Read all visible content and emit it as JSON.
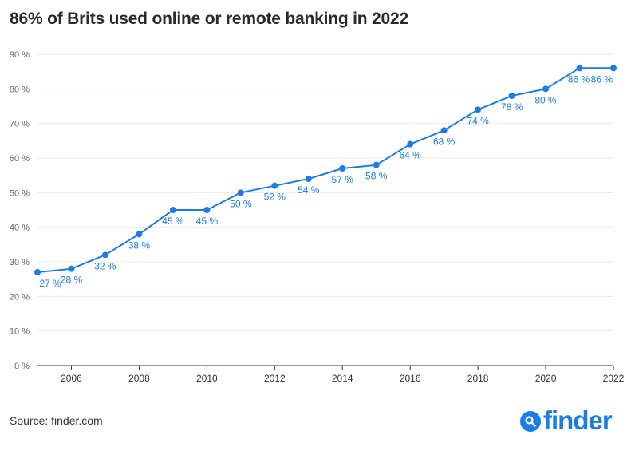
{
  "chart_data": {
    "type": "line",
    "title": "86% of Brits used online or remote banking in 2022",
    "xlabel": "",
    "ylabel": "",
    "x": [
      2005,
      2006,
      2007,
      2008,
      2009,
      2010,
      2011,
      2012,
      2013,
      2014,
      2015,
      2016,
      2017,
      2018,
      2019,
      2020,
      2021,
      2022
    ],
    "values": [
      27,
      28,
      32,
      38,
      45,
      45,
      50,
      52,
      54,
      57,
      58,
      64,
      68,
      74,
      78,
      80,
      86,
      86
    ],
    "data_labels": [
      "27 %",
      "28 %",
      "32 %",
      "38 %",
      "45 %",
      "45 %",
      "50 %",
      "52 %",
      "54 %",
      "57 %",
      "58 %",
      "64 %",
      "68 %",
      "74 %",
      "78 %",
      "80 %",
      "86 %",
      "86 %"
    ],
    "ylim": [
      0,
      90
    ],
    "xlim": [
      2005,
      2022
    ],
    "y_ticks": [
      0,
      10,
      20,
      30,
      40,
      50,
      60,
      70,
      80,
      90
    ],
    "y_tick_labels": [
      "0 %",
      "10 %",
      "20 %",
      "30 %",
      "40 %",
      "50 %",
      "60 %",
      "70 %",
      "80 %",
      "90 %"
    ],
    "x_ticks": [
      2006,
      2008,
      2010,
      2012,
      2014,
      2016,
      2018,
      2020,
      2022
    ],
    "x_tick_labels": [
      "2006",
      "2008",
      "2010",
      "2012",
      "2014",
      "2016",
      "2018",
      "2020",
      "2022"
    ],
    "grid": true,
    "legend": "none"
  },
  "footer": {
    "source": "Source: finder.com",
    "logo_text": "finder",
    "logo_icon": "magnifier-icon"
  },
  "colors": {
    "series": "#1a7de6",
    "grid": "#ececec",
    "axis": "#333333",
    "brand": "#1a7de6"
  }
}
